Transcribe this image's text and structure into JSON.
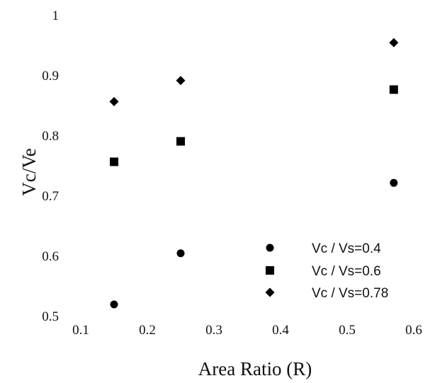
{
  "chart_data": {
    "type": "scatter",
    "xlabel": "Area Ratio (R)",
    "ylabel": "Vc/Ve",
    "xlim": [
      0.1,
      0.6
    ],
    "ylim": [
      0.5,
      1.0
    ],
    "x_ticks": [
      "0.1",
      "0.2",
      "0.3",
      "0.4",
      "0.5",
      "0.6"
    ],
    "y_ticks": [
      "0.5",
      "0.6",
      "0.7",
      "0.8",
      "0.9",
      "1"
    ],
    "grid": false,
    "legend_position": "bottom-right",
    "series": [
      {
        "name": "Vc / Vs=0.4",
        "marker": "circle",
        "color": "#000000",
        "points": [
          {
            "x": 0.15,
            "y": 0.52
          },
          {
            "x": 0.25,
            "y": 0.605
          },
          {
            "x": 0.57,
            "y": 0.722
          }
        ]
      },
      {
        "name": "Vc / Vs=0.6",
        "marker": "square",
        "color": "#000000",
        "points": [
          {
            "x": 0.15,
            "y": 0.757
          },
          {
            "x": 0.25,
            "y": 0.791
          },
          {
            "x": 0.57,
            "y": 0.877
          }
        ]
      },
      {
        "name": "Vc / Vs=0.78",
        "marker": "diamond",
        "color": "#000000",
        "points": [
          {
            "x": 0.15,
            "y": 0.857
          },
          {
            "x": 0.25,
            "y": 0.892
          },
          {
            "x": 0.57,
            "y": 0.955
          }
        ]
      }
    ]
  }
}
